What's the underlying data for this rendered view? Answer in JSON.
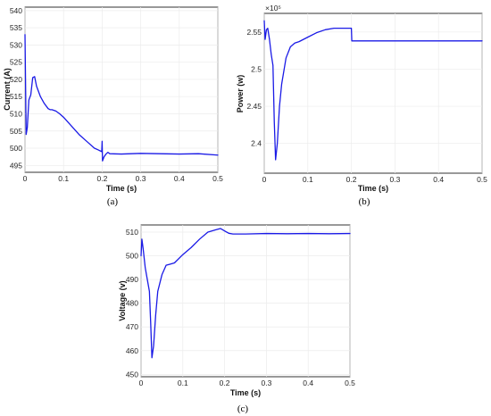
{
  "colors": {
    "series": "#1a1ae6",
    "grid": "#ececec",
    "axis": "#000000"
  },
  "chart_data": [
    {
      "type": "line",
      "panel_label": "(a)",
      "xlabel": "Time (s)",
      "ylabel": "Current (A)",
      "xlim": [
        0,
        0.5
      ],
      "ylim": [
        493,
        541
      ],
      "xticks": [
        "0",
        "0.1",
        "0.2",
        "0.3",
        "0.4",
        "0.5"
      ],
      "yticks": [
        "495",
        "500",
        "505",
        "510",
        "515",
        "520",
        "525",
        "530",
        "535",
        "540"
      ],
      "grid": true,
      "series": [
        {
          "x": [
            0,
            0.003,
            0.006,
            0.01,
            0.015,
            0.02,
            0.025,
            0.03,
            0.04,
            0.05,
            0.06,
            0.065,
            0.07,
            0.08,
            0.09,
            0.1,
            0.12,
            0.14,
            0.16,
            0.18,
            0.19,
            0.199,
            0.2,
            0.201,
            0.205,
            0.21,
            0.215,
            0.22,
            0.25,
            0.3,
            0.35,
            0.4,
            0.45,
            0.5
          ],
          "y": [
            533,
            504,
            506,
            514,
            515.5,
            520.5,
            520.8,
            518,
            515,
            513,
            511.5,
            511.2,
            511.2,
            510.8,
            510,
            509,
            506.5,
            504,
            502,
            500,
            499.5,
            499,
            502,
            496.3,
            497.5,
            498.3,
            498.8,
            498.4,
            498.3,
            498.5,
            498.4,
            498.3,
            498.4,
            498
          ]
        }
      ]
    },
    {
      "type": "line",
      "panel_label": "(b)",
      "xlabel": "Time (s)",
      "ylabel": "Power (w)",
      "exponent": "×10⁵",
      "xlim": [
        0,
        0.5
      ],
      "ylim": [
        2.36,
        2.575
      ],
      "xticks": [
        "0",
        "0.1",
        "0.2",
        "0.3",
        "0.4",
        "0.5"
      ],
      "yticks": [
        "2.4",
        "2.45",
        "2.5",
        "2.55"
      ],
      "grid": true,
      "series": [
        {
          "x": [
            0,
            0.002,
            0.005,
            0.008,
            0.012,
            0.016,
            0.02,
            0.023,
            0.026,
            0.03,
            0.035,
            0.04,
            0.05,
            0.06,
            0.07,
            0.08,
            0.1,
            0.12,
            0.14,
            0.16,
            0.18,
            0.199,
            0.2,
            0.201,
            0.25,
            0.3,
            0.35,
            0.4,
            0.45,
            0.5
          ],
          "y": [
            2.565,
            2.54,
            2.553,
            2.555,
            2.54,
            2.52,
            2.505,
            2.43,
            2.378,
            2.4,
            2.45,
            2.48,
            2.515,
            2.53,
            2.535,
            2.537,
            2.543,
            2.549,
            2.553,
            2.555,
            2.555,
            2.555,
            2.555,
            2.538,
            2.538,
            2.538,
            2.538,
            2.538,
            2.538,
            2.538
          ]
        }
      ]
    },
    {
      "type": "line",
      "panel_label": "(c)",
      "xlabel": "Time (s)",
      "ylabel": "Voltage (v)",
      "xlim": [
        0,
        0.5
      ],
      "ylim": [
        449,
        513
      ],
      "xticks": [
        "0",
        "0.1",
        "0.2",
        "0.3",
        "0.4",
        "0.5"
      ],
      "yticks": [
        "450",
        "460",
        "470",
        "480",
        "490",
        "500",
        "510"
      ],
      "grid": true,
      "series": [
        {
          "x": [
            0,
            0.002,
            0.005,
            0.01,
            0.015,
            0.02,
            0.023,
            0.026,
            0.03,
            0.035,
            0.04,
            0.05,
            0.06,
            0.07,
            0.08,
            0.1,
            0.12,
            0.14,
            0.16,
            0.18,
            0.19,
            0.2,
            0.21,
            0.22,
            0.25,
            0.3,
            0.35,
            0.4,
            0.45,
            0.5
          ],
          "y": [
            500,
            507,
            503,
            495,
            490,
            485,
            472,
            457,
            462,
            475,
            485,
            492,
            496,
            496.5,
            497,
            500.5,
            503.5,
            507,
            510,
            511,
            511.5,
            510.5,
            509.5,
            509.2,
            509.2,
            509.4,
            509.3,
            509.4,
            509.3,
            509.4
          ]
        }
      ]
    }
  ]
}
